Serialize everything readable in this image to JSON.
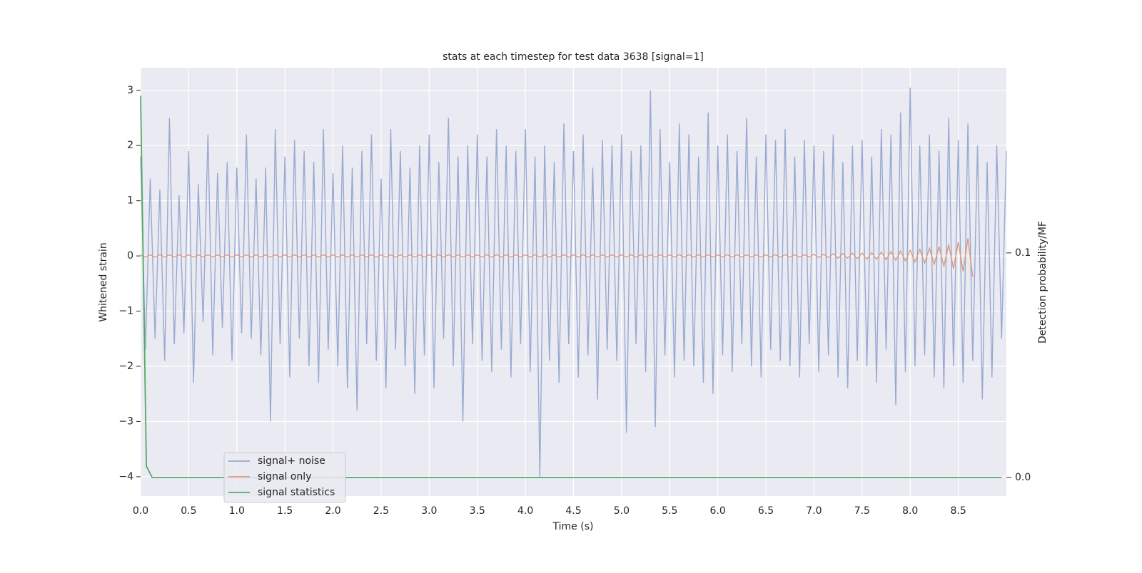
{
  "chart_data": {
    "type": "line",
    "title": "stats at each timestep for test data 3638 [signal=1]",
    "x_label": "Time (s)",
    "y_label": "Whitened strain",
    "y2_label": "Detection probability/MF",
    "xlim": [
      0,
      9.0
    ],
    "ylim": [
      -4.35,
      3.41
    ],
    "y2lim": [
      -0.0083,
      0.1825
    ],
    "xticks": [
      {
        "value": 0,
        "label": "0.0"
      },
      0.5,
      {
        "value": 1,
        "label": "1.0"
      },
      1.5,
      {
        "value": 2,
        "label": "2.0"
      },
      2.5,
      {
        "value": 3,
        "label": "3.0"
      },
      3.5,
      {
        "value": 4,
        "label": "4.0"
      },
      4.5,
      {
        "value": 5,
        "label": "5.0"
      },
      5.5,
      {
        "value": 6,
        "label": "6.0"
      },
      6.5,
      {
        "value": 7,
        "label": "7.0"
      },
      7.5,
      {
        "value": 8,
        "label": "8.0"
      },
      8.5
    ],
    "yticks": [
      {
        "value": -4,
        "label": "−4"
      },
      {
        "value": -3,
        "label": "−3"
      },
      {
        "value": -2,
        "label": "−2"
      },
      {
        "value": -1,
        "label": "−1"
      },
      0,
      1,
      2,
      3
    ],
    "y2ticks": [
      {
        "value": 0,
        "label": "0.0"
      },
      0.1
    ],
    "grid": true,
    "legend": "lower left",
    "x": [
      0,
      0.05,
      0.1,
      0.15,
      0.2,
      0.25,
      0.3,
      0.35,
      0.4,
      0.45,
      0.5,
      0.55,
      0.6,
      0.65,
      0.7,
      0.75,
      0.8,
      0.85,
      0.9,
      0.95,
      1,
      1.05,
      1.1,
      1.15,
      1.2,
      1.25,
      1.3,
      1.35,
      1.4,
      1.45,
      1.5,
      1.55,
      1.6,
      1.65,
      1.7,
      1.75,
      1.8,
      1.85,
      1.9,
      1.95,
      2,
      2.05,
      2.1,
      2.15,
      2.2,
      2.25,
      2.3,
      2.35,
      2.4,
      2.45,
      2.5,
      2.55,
      2.6,
      2.65,
      2.7,
      2.75,
      2.8,
      2.85,
      2.9,
      2.95,
      3,
      3.05,
      3.1,
      3.15,
      3.2,
      3.25,
      3.3,
      3.35,
      3.4,
      3.45,
      3.5,
      3.55,
      3.6,
      3.65,
      3.7,
      3.75,
      3.8,
      3.85,
      3.9,
      3.95,
      4,
      4.05,
      4.1,
      4.15,
      4.2,
      4.25,
      4.3,
      4.35,
      4.4,
      4.45,
      4.5,
      4.55,
      4.6,
      4.65,
      4.7,
      4.75,
      4.8,
      4.85,
      4.9,
      4.95,
      5,
      5.05,
      5.1,
      5.15,
      5.2,
      5.25,
      5.3,
      5.35,
      5.4,
      5.45,
      5.5,
      5.55,
      5.6,
      5.65,
      5.7,
      5.75,
      5.8,
      5.85,
      5.9,
      5.95,
      6,
      6.05,
      6.1,
      6.15,
      6.2,
      6.25,
      6.3,
      6.35,
      6.4,
      6.45,
      6.5,
      6.55,
      6.6,
      6.65,
      6.7,
      6.75,
      6.8,
      6.85,
      6.9,
      6.95,
      7,
      7.05,
      7.1,
      7.15,
      7.2,
      7.25,
      7.3,
      7.35,
      7.4,
      7.45,
      7.5,
      7.55,
      7.6,
      7.65,
      7.7,
      7.75,
      7.8,
      7.85,
      7.9,
      7.95,
      8,
      8.05,
      8.1,
      8.15,
      8.2,
      8.25,
      8.3,
      8.35,
      8.4,
      8.45,
      8.5,
      8.55,
      8.6,
      8.65,
      8.7,
      8.75,
      8.8,
      8.85,
      8.9,
      8.95,
      9.0
    ],
    "series": [
      {
        "name": "signal+ noise",
        "color": "#98aad0",
        "values": [
          1.8,
          -1.7,
          1.4,
          -1.5,
          1.2,
          -1.9,
          2.5,
          -1.6,
          1.1,
          -1.4,
          1.9,
          -2.3,
          1.3,
          -1.2,
          2.2,
          -1.8,
          1.5,
          -1.3,
          1.7,
          -1.9,
          1.6,
          -1.4,
          2.2,
          -1.5,
          1.4,
          -1.8,
          1.6,
          -3.0,
          2.3,
          -1.6,
          1.8,
          -2.2,
          2.1,
          -1.5,
          1.9,
          -2.0,
          1.7,
          -2.3,
          2.3,
          -1.7,
          1.5,
          -2.0,
          2.0,
          -2.4,
          1.6,
          -2.8,
          1.9,
          -1.6,
          2.2,
          -1.9,
          1.4,
          -2.4,
          2.3,
          -1.7,
          1.9,
          -2.0,
          1.6,
          -2.5,
          2.0,
          -1.8,
          2.2,
          -2.4,
          1.7,
          -1.5,
          2.5,
          -2.0,
          1.8,
          -3.0,
          2.0,
          -1.6,
          2.2,
          -1.9,
          1.8,
          -2.1,
          2.3,
          -1.7,
          2.0,
          -2.2,
          1.9,
          -1.6,
          2.3,
          -2.1,
          1.8,
          -4.0,
          2.0,
          -1.9,
          1.7,
          -2.3,
          2.4,
          -1.6,
          1.9,
          -2.2,
          2.2,
          -1.8,
          1.6,
          -2.6,
          2.1,
          -1.7,
          2.0,
          -1.9,
          2.2,
          -3.2,
          1.9,
          -1.6,
          2.0,
          -2.1,
          3.0,
          -3.1,
          2.3,
          -1.8,
          1.7,
          -2.2,
          2.4,
          -1.9,
          2.2,
          -2.0,
          1.8,
          -2.3,
          2.6,
          -2.5,
          2.0,
          -1.8,
          2.2,
          -2.1,
          1.9,
          -1.6,
          2.5,
          -2.0,
          1.8,
          -2.2,
          2.2,
          -1.7,
          2.1,
          -1.9,
          2.3,
          -2.0,
          1.8,
          -2.2,
          2.1,
          -1.6,
          2.0,
          -2.1,
          1.9,
          -1.8,
          2.2,
          -2.2,
          1.7,
          -2.4,
          2.0,
          -1.9,
          2.1,
          -2.0,
          1.8,
          -2.3,
          2.3,
          -1.7,
          2.2,
          -2.7,
          2.6,
          -2.1,
          3.05,
          -2.0,
          2.0,
          -1.8,
          2.2,
          -2.2,
          1.9,
          -2.4,
          2.5,
          -2.0,
          2.1,
          -2.3,
          2.4,
          -1.9,
          2.0,
          -2.6,
          1.7,
          -2.2,
          2.0,
          -1.5,
          1.9
        ]
      },
      {
        "name": "signal only",
        "color": "#dd9a7c",
        "values": [
          0.02,
          -0.02,
          0.02,
          -0.02,
          0.02,
          -0.02,
          0.02,
          -0.02,
          0.02,
          -0.02,
          0.02,
          -0.02,
          0.02,
          -0.02,
          0.02,
          -0.02,
          0.02,
          -0.02,
          0.02,
          -0.02,
          0.02,
          -0.02,
          0.02,
          -0.02,
          0.02,
          -0.02,
          0.02,
          -0.02,
          0.02,
          -0.02,
          0.02,
          -0.02,
          0.02,
          -0.02,
          0.02,
          -0.02,
          0.02,
          -0.02,
          0.02,
          -0.02,
          0.02,
          -0.02,
          0.02,
          -0.02,
          0.02,
          -0.02,
          0.02,
          -0.02,
          0.02,
          -0.02,
          0.02,
          -0.02,
          0.02,
          -0.02,
          0.02,
          -0.02,
          0.02,
          -0.02,
          0.02,
          -0.02,
          0.02,
          -0.02,
          0.02,
          -0.02,
          0.02,
          -0.02,
          0.02,
          -0.02,
          0.02,
          -0.02,
          0.02,
          -0.02,
          0.02,
          -0.02,
          0.02,
          -0.02,
          0.02,
          -0.02,
          0.02,
          -0.02,
          0.02,
          -0.02,
          0.02,
          -0.02,
          0.02,
          -0.02,
          0.02,
          -0.02,
          0.02,
          -0.02,
          0.02,
          -0.02,
          0.02,
          -0.02,
          0.02,
          -0.02,
          0.02,
          -0.02,
          0.02,
          -0.02,
          0.02,
          -0.02,
          0.02,
          -0.02,
          0.02,
          -0.02,
          0.02,
          -0.02,
          0.02,
          -0.02,
          0.02,
          -0.02,
          0.02,
          -0.02,
          0.02,
          -0.02,
          0.02,
          -0.02,
          0.02,
          -0.02,
          0.02,
          -0.02,
          0.02,
          -0.02,
          0.02,
          -0.02,
          0.02,
          -0.02,
          0.02,
          -0.02,
          0.02,
          -0.02,
          0.02,
          -0.02,
          0.02,
          -0.02,
          0.02,
          -0.02,
          0.02,
          -0.02,
          0.03,
          -0.03,
          0.03,
          -0.03,
          0.04,
          -0.04,
          0.04,
          -0.04,
          0.05,
          -0.05,
          0.05,
          -0.06,
          0.06,
          -0.06,
          0.07,
          -0.07,
          0.08,
          -0.08,
          0.09,
          -0.09,
          0.1,
          -0.11,
          0.12,
          -0.13,
          0.14,
          -0.15,
          0.17,
          -0.19,
          0.21,
          -0.23,
          0.25,
          -0.28,
          0.32,
          -0.38,
          null,
          null,
          null,
          null,
          null,
          null,
          null
        ]
      },
      {
        "name": "signal statistics",
        "color": "#55a868",
        "axis": "y2",
        "x": [
          0,
          0.06,
          0.12,
          8.95
        ],
        "values": [
          0.17,
          0.005,
          0,
          0
        ]
      }
    ]
  }
}
